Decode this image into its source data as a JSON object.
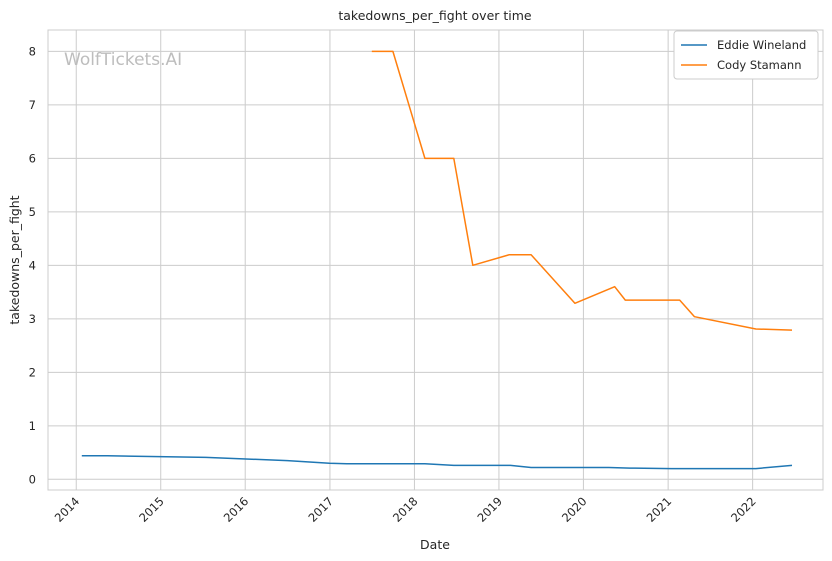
{
  "chart_data": {
    "type": "line",
    "title": "takedowns_per_fight over time",
    "xlabel": "Date",
    "ylabel": "takedowns_per_fight",
    "watermark": "WolfTickets.AI",
    "x_tick_labels": [
      "2014",
      "2015",
      "2016",
      "2017",
      "2018",
      "2019",
      "2020",
      "2021",
      "2022"
    ],
    "y_tick_labels": [
      "0",
      "1",
      "2",
      "3",
      "4",
      "5",
      "6",
      "7",
      "8"
    ],
    "xlim": [
      "2013-09-01",
      "2022-11-01"
    ],
    "ylim": [
      -0.2,
      8.4
    ],
    "grid": true,
    "legend_position": "top-right",
    "series": [
      {
        "name": "Eddie Wineland",
        "color": "#1f77b4",
        "points": [
          [
            "2014-01-25",
            0.44
          ],
          [
            "2014-05-15",
            0.44
          ],
          [
            "2015-07-15",
            0.41
          ],
          [
            "2016-07-01",
            0.35
          ],
          [
            "2016-12-30",
            0.3
          ],
          [
            "2017-03-15",
            0.29
          ],
          [
            "2018-02-15",
            0.29
          ],
          [
            "2018-06-20",
            0.26
          ],
          [
            "2019-02-20",
            0.26
          ],
          [
            "2019-05-20",
            0.22
          ],
          [
            "2020-04-20",
            0.22
          ],
          [
            "2020-07-20",
            0.21
          ],
          [
            "2021-01-15",
            0.2
          ],
          [
            "2022-01-15",
            0.2
          ],
          [
            "2022-06-20",
            0.26
          ]
        ]
      },
      {
        "name": "Cody Stamann",
        "color": "#ff7f0e",
        "points": [
          [
            "2017-07-01",
            8.0
          ],
          [
            "2017-09-30",
            8.0
          ],
          [
            "2018-02-15",
            6.0
          ],
          [
            "2018-06-20",
            6.0
          ],
          [
            "2018-09-10",
            4.0
          ],
          [
            "2019-02-15",
            4.2
          ],
          [
            "2019-05-20",
            4.2
          ],
          [
            "2019-11-25",
            3.29
          ],
          [
            "2020-05-15",
            3.6
          ],
          [
            "2020-06-30",
            3.35
          ],
          [
            "2021-02-20",
            3.35
          ],
          [
            "2021-04-25",
            3.04
          ],
          [
            "2022-01-15",
            2.81
          ],
          [
            "2022-06-20",
            2.79
          ]
        ]
      }
    ]
  }
}
